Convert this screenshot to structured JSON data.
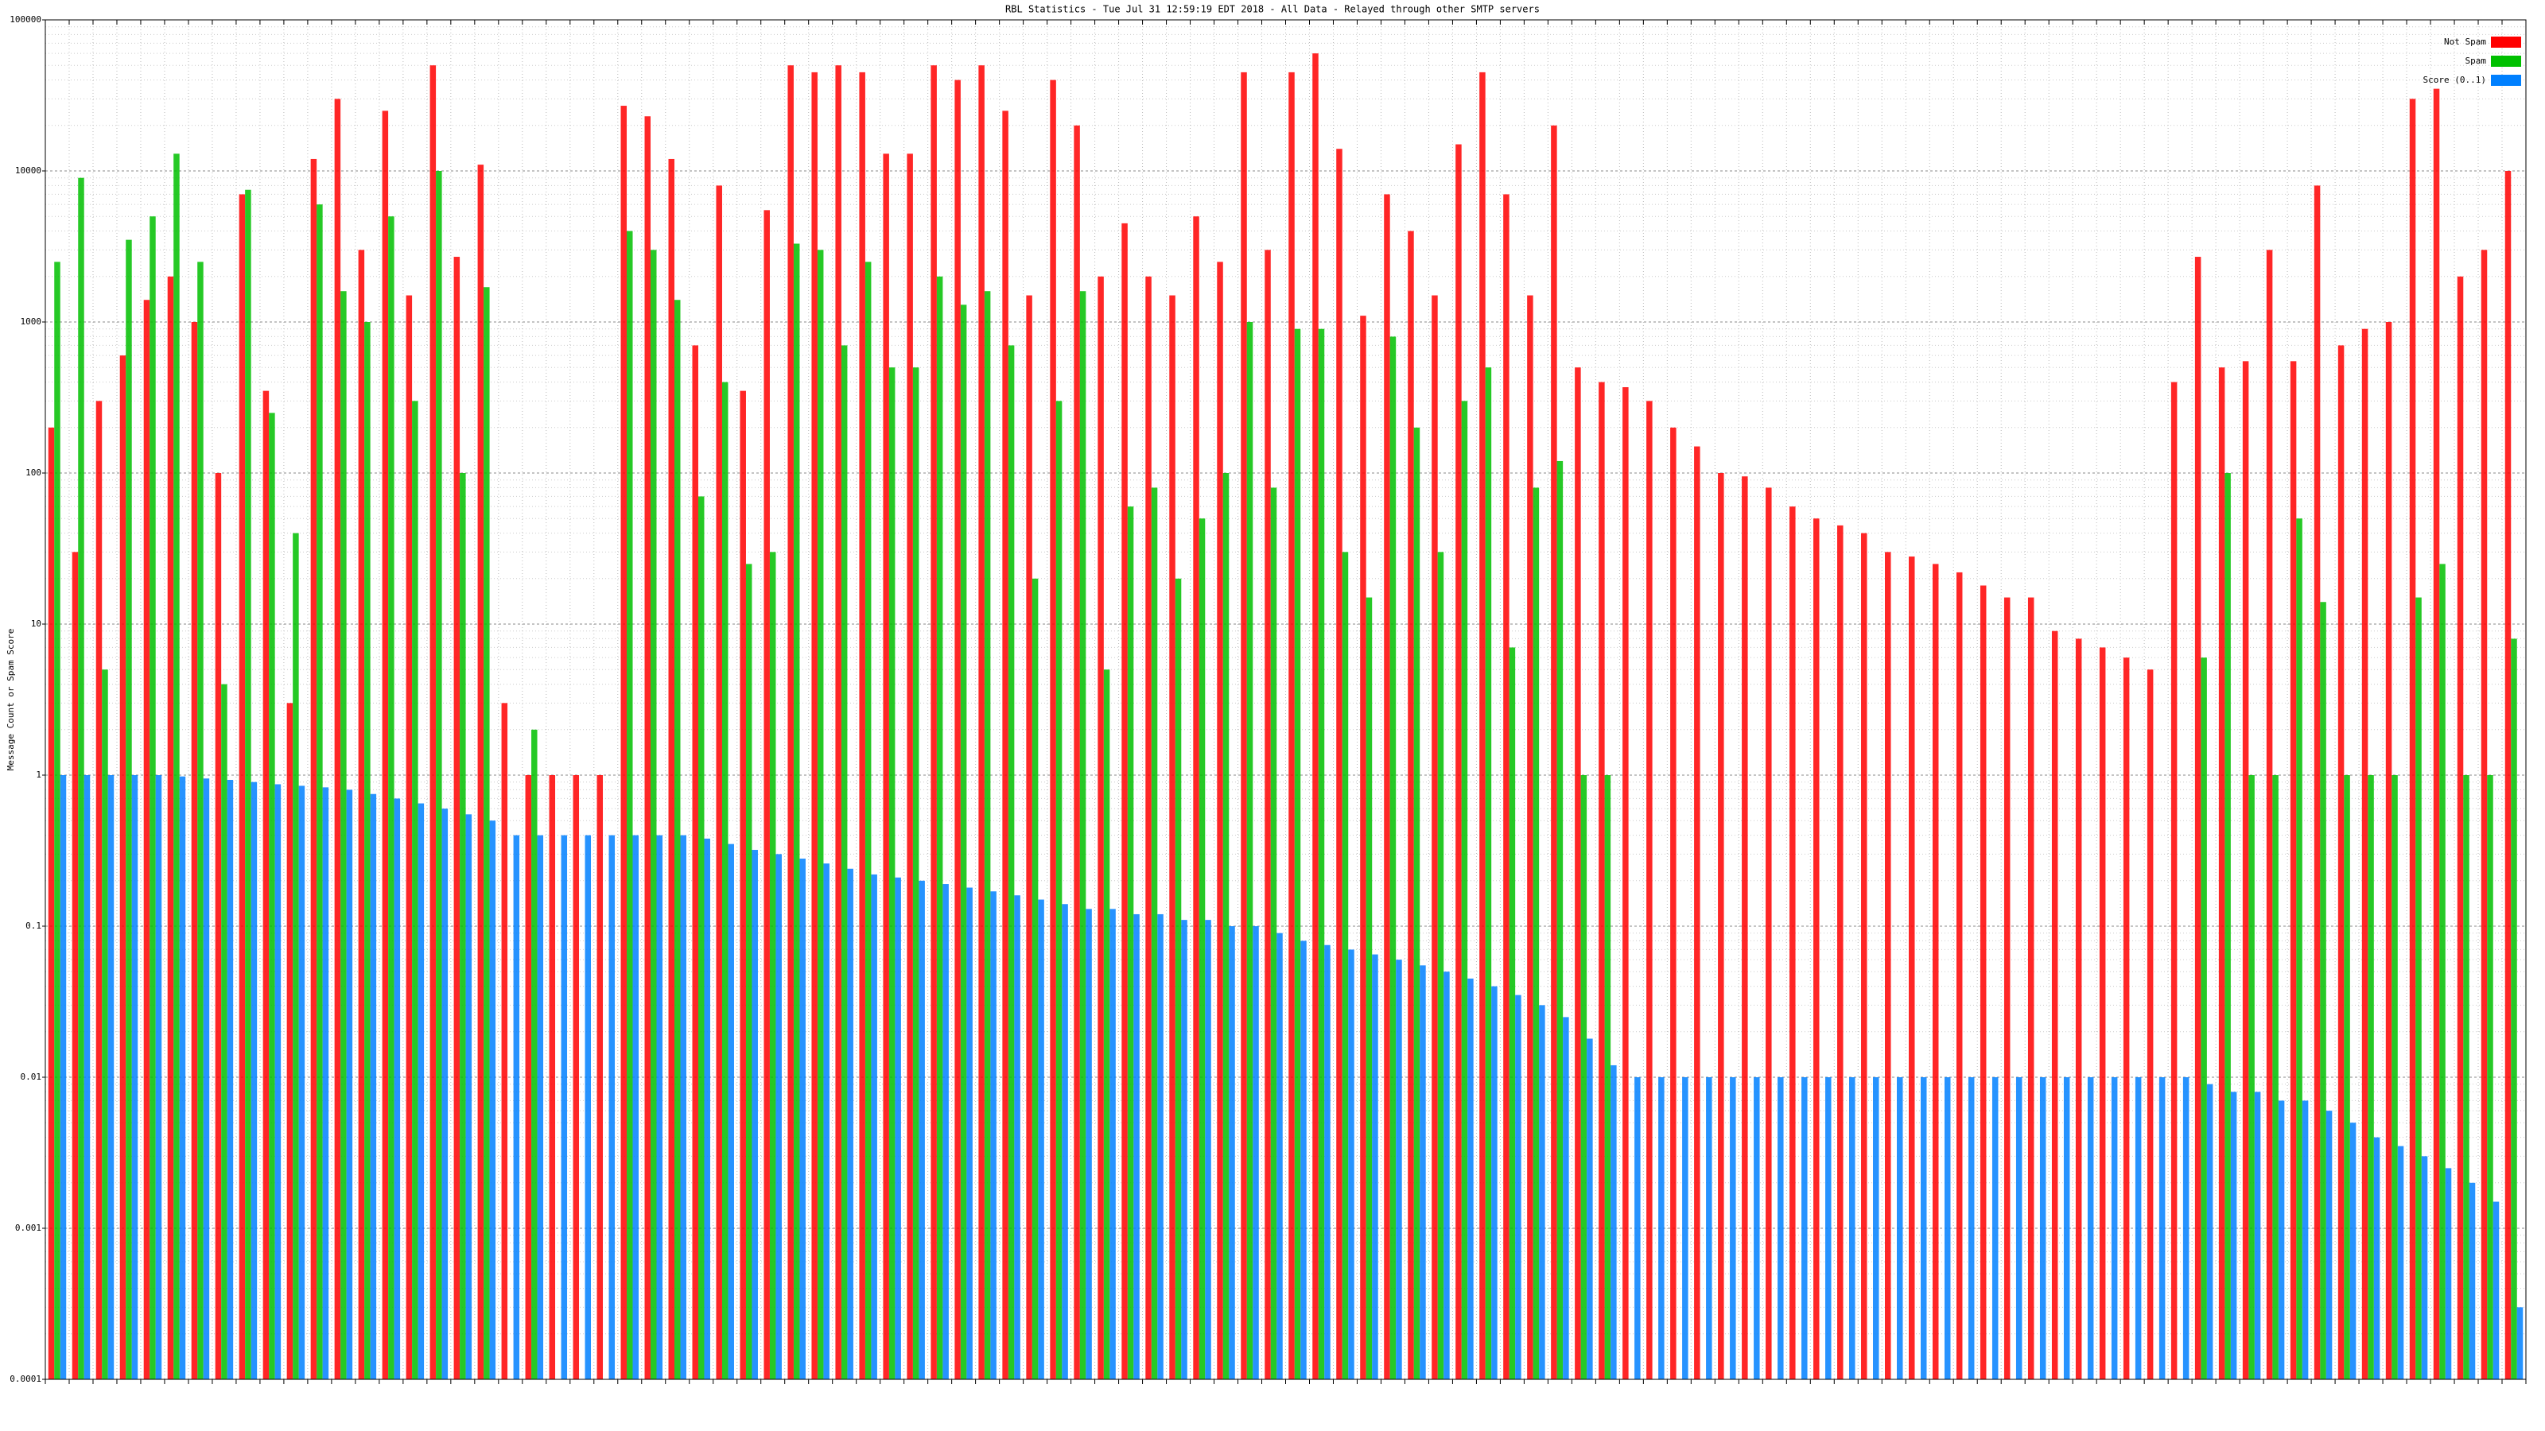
{
  "chart_data": {
    "type": "bar",
    "title": "RBL Statistics - Tue Jul 31 12:59:19 EDT 2018 - All Data - Relayed through other SMTP servers",
    "y_label": "Message Count or Spam Score",
    "log_scale": true,
    "grid": true,
    "legend": "top-right",
    "ylim": [
      0.0001,
      100000
    ],
    "yticks": [
      0.0001,
      0.001,
      0.01,
      0.1,
      1,
      10,
      100,
      1000,
      10000,
      100000
    ],
    "categories": [
      null,
      null,
      null,
      null,
      null,
      null,
      null,
      null,
      null,
      null,
      null,
      null,
      null,
      null,
      null,
      null,
      null,
      null,
      null,
      null,
      null,
      null,
      null,
      null,
      null,
      null,
      null,
      null,
      null,
      null,
      null,
      null,
      null,
      null,
      null,
      null,
      null,
      null,
      null,
      null,
      null,
      null,
      null,
      null,
      null,
      null,
      null,
      null,
      null,
      null,
      null,
      null,
      null,
      null,
      null,
      null,
      null,
      null,
      null,
      null,
      null,
      null,
      null,
      null,
      null,
      null,
      null,
      null,
      null,
      null,
      null,
      null,
      null,
      null,
      null,
      null,
      null,
      null,
      null,
      null,
      null,
      null,
      null,
      null,
      null,
      null,
      null,
      null,
      null,
      null,
      null,
      null,
      null,
      null,
      null,
      null,
      null,
      null,
      null,
      null,
      null,
      null,
      null,
      null
    ],
    "series": [
      {
        "name": "Not Spam",
        "color": "#ff0000",
        "values": [
          200,
          30,
          300,
          600,
          1400,
          2000,
          1000,
          100,
          7000,
          350,
          3,
          12000,
          30000,
          3000,
          25000,
          1500,
          50000,
          2700,
          11000,
          3,
          1,
          1,
          1,
          1,
          27000,
          23000,
          12000,
          700,
          8000,
          350,
          5500,
          50000,
          45000,
          50000,
          45000,
          13000,
          13000,
          50000,
          40000,
          50000,
          25000,
          1500,
          40000,
          20000,
          2000,
          4500,
          2000,
          1500,
          5000,
          2500,
          45000,
          3000,
          45000,
          60000,
          14000,
          1100,
          7000,
          4000,
          1500,
          15000,
          45000,
          7000,
          1500,
          20000,
          500,
          400,
          370,
          300,
          200,
          150,
          100,
          95,
          80,
          60,
          50,
          45,
          40,
          30,
          28,
          25,
          22,
          18,
          15,
          15,
          9,
          8,
          7,
          6,
          5,
          400,
          2700,
          500,
          550,
          3000,
          550,
          8000,
          700,
          900,
          1000,
          30000,
          35000,
          2000,
          3000,
          10000
        ]
      },
      {
        "name": "Spam",
        "color": "#00c000",
        "values": [
          2500,
          9000,
          5,
          3500,
          5000,
          13000,
          2500,
          4,
          7500,
          250,
          40,
          6000,
          1600,
          1000,
          5000,
          300,
          10000,
          100,
          1700,
          null,
          2,
          null,
          null,
          null,
          4000,
          3000,
          1400,
          70,
          400,
          25,
          30,
          3300,
          3000,
          700,
          2500,
          500,
          500,
          2000,
          1300,
          1600,
          700,
          20,
          300,
          1600,
          5,
          60,
          80,
          20,
          50,
          100,
          1000,
          80,
          900,
          900,
          30,
          15,
          800,
          200,
          30,
          300,
          500,
          7,
          80,
          120,
          1,
          1,
          null,
          null,
          null,
          null,
          null,
          null,
          null,
          null,
          null,
          null,
          null,
          null,
          null,
          null,
          null,
          null,
          null,
          null,
          null,
          null,
          null,
          null,
          null,
          null,
          6,
          100,
          1,
          1,
          50,
          14,
          1,
          1,
          1,
          15,
          25,
          1,
          1,
          8
        ]
      },
      {
        "name": "Score (0..1)",
        "color": "#0080ff",
        "values": [
          1,
          1,
          1,
          1,
          1,
          0.98,
          0.95,
          0.93,
          0.9,
          0.87,
          0.85,
          0.83,
          0.8,
          0.75,
          0.7,
          0.65,
          0.6,
          0.55,
          0.5,
          0.4,
          0.4,
          0.4,
          0.4,
          0.4,
          0.4,
          0.4,
          0.4,
          0.38,
          0.35,
          0.32,
          0.3,
          0.28,
          0.26,
          0.24,
          0.22,
          0.21,
          0.2,
          0.19,
          0.18,
          0.17,
          0.16,
          0.15,
          0.14,
          0.13,
          0.13,
          0.12,
          0.12,
          0.11,
          0.11,
          0.1,
          0.1,
          0.09,
          0.08,
          0.075,
          0.07,
          0.065,
          0.06,
          0.055,
          0.05,
          0.045,
          0.04,
          0.035,
          0.03,
          0.025,
          0.018,
          0.012,
          0.01,
          0.01,
          0.01,
          0.01,
          0.01,
          0.01,
          0.01,
          0.01,
          0.01,
          0.01,
          0.01,
          0.01,
          0.01,
          0.01,
          0.01,
          0.01,
          0.01,
          0.01,
          0.01,
          0.01,
          0.01,
          0.01,
          0.01,
          0.01,
          0.009,
          0.008,
          0.008,
          0.007,
          0.007,
          0.006,
          0.005,
          0.004,
          0.0035,
          0.003,
          0.0025,
          0.002,
          0.0015,
          0.0003
        ]
      }
    ]
  }
}
